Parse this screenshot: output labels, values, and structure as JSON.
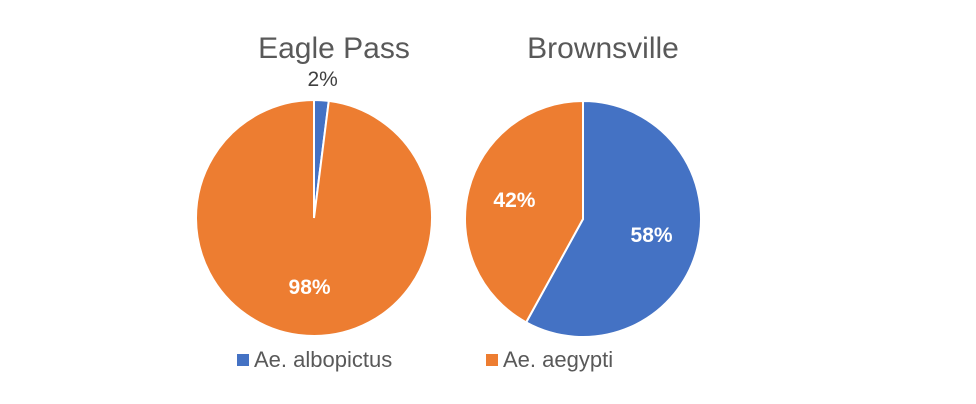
{
  "chart_data": [
    {
      "type": "pie",
      "title": "Eagle Pass",
      "categories": [
        "Ae. albopictus",
        "Ae. aegypti"
      ],
      "values": [
        2,
        98
      ],
      "value_labels": [
        "2%",
        "98%"
      ],
      "colors": [
        "#4472c4",
        "#ed7d31"
      ]
    },
    {
      "type": "pie",
      "title": "Brownsville",
      "categories": [
        "Ae. albopictus",
        "Ae. aegypti"
      ],
      "values": [
        58,
        42
      ],
      "value_labels": [
        "58%",
        "42%"
      ],
      "colors": [
        "#4472c4",
        "#ed7d31"
      ]
    }
  ]
}
